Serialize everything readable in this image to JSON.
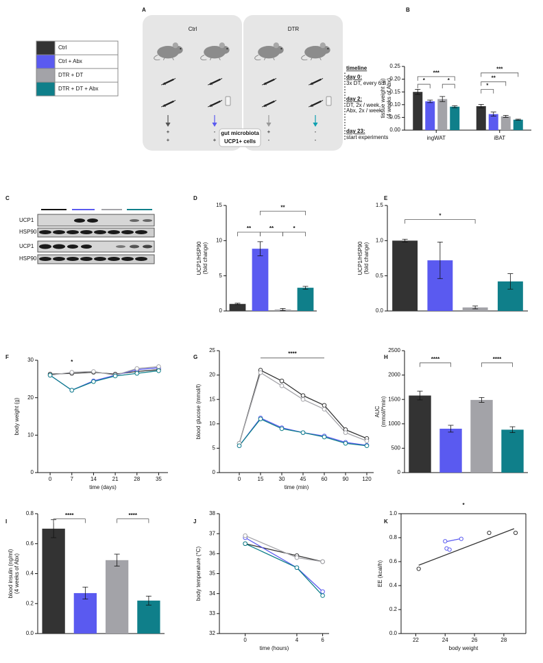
{
  "legend": {
    "entries": [
      {
        "label": "Ctrl",
        "color": "#333333"
      },
      {
        "label": "Ctrl + Abx",
        "color": "#5a5af0"
      },
      {
        "label": "DTR + DT",
        "color": "#a3a3a8"
      },
      {
        "label": "DTR + DT + Abx",
        "color": "#0f7f8a"
      }
    ]
  },
  "panel_a": {
    "letter": "A",
    "groups": [
      "Ctrl",
      "DTR"
    ],
    "signs": [
      [
        "+",
        "+"
      ],
      [
        "-",
        "+"
      ],
      [
        "+",
        "-"
      ],
      [
        "-",
        "-"
      ]
    ],
    "row_labels": [
      "gut microbiota",
      "UCP1+ cells"
    ],
    "timeline": {
      "title": "timeline",
      "steps": [
        {
          "day": "day 0:",
          "text": [
            "3x DT, every 6 h"
          ]
        },
        {
          "day": "day 2:",
          "text": [
            "DT, 2x / week,",
            "Abx, 2x / week"
          ]
        },
        {
          "day": "day 23:",
          "text": [
            "start experiments"
          ]
        }
      ]
    }
  },
  "panel_c": {
    "letter": "C",
    "rows": [
      "UCP1",
      "HSP90",
      "UCP1",
      "HSP90"
    ]
  },
  "chart_data": [
    {
      "type": "bar",
      "panel": "B",
      "categories": [
        "ingWAT",
        "iBAT"
      ],
      "ylabel": [
        "tissue weight (g)",
        "(4 weeks of Abx)"
      ],
      "series": [
        {
          "name": "Ctrl",
          "color": "#333333",
          "values": [
            0.15,
            0.094
          ],
          "errors": [
            0.01,
            0.007
          ]
        },
        {
          "name": "Ctrl + Abx",
          "color": "#5a5af0",
          "values": [
            0.113,
            0.063
          ],
          "errors": [
            0.005,
            0.008
          ]
        },
        {
          "name": "DTR + DT",
          "color": "#a3a3a8",
          "values": [
            0.122,
            0.054
          ],
          "errors": [
            0.01,
            0.004
          ]
        },
        {
          "name": "DTR + DT + Abx",
          "color": "#0f7f8a",
          "values": [
            0.092,
            0.041
          ],
          "errors": [
            0.004,
            0.002
          ]
        }
      ],
      "ylim": [
        0,
        0.25
      ],
      "yticks": [
        {
          "value": 0,
          "label": "0.00"
        },
        {
          "value": 0.05,
          "label": "0.05"
        },
        {
          "value": 0.1,
          "label": "0.10"
        },
        {
          "value": 0.15,
          "label": "0.15"
        },
        {
          "value": 0.2,
          "label": "0.20"
        },
        {
          "value": 0.25,
          "label": "0.25"
        }
      ],
      "annotations": [
        "*",
        "*",
        "***",
        "*",
        "**",
        "***"
      ]
    },
    {
      "type": "bar",
      "panel": "D",
      "values": [
        1.0,
        8.85,
        0.2,
        3.3
      ],
      "errors": [
        0.1,
        1.0,
        0.15,
        0.2
      ],
      "colors": [
        "#333333",
        "#5a5af0",
        "#a3a3a8",
        "#0f7f8a"
      ],
      "ylabel": [
        "UCP1/HSP90",
        "(fold change)"
      ],
      "ylim": [
        0,
        15
      ],
      "yticks": [
        0,
        5,
        10,
        15
      ],
      "annotations": [
        "**",
        "**",
        "*",
        "**"
      ]
    },
    {
      "type": "bar",
      "panel": "E",
      "values": [
        1.0,
        0.72,
        0.05,
        0.42
      ],
      "errors": [
        0.02,
        0.26,
        0.02,
        0.11
      ],
      "colors": [
        "#333333",
        "#5a5af0",
        "#a3a3a8",
        "#0f7f8a"
      ],
      "ylabel": [
        "UCP1/HSP90",
        "(fold change)"
      ],
      "ylim": [
        0,
        1.5
      ],
      "yticks": [
        {
          "value": 0,
          "label": "0.0"
        },
        {
          "value": 0.5,
          "label": "0.5"
        },
        {
          "value": 1,
          "label": "1.0"
        },
        {
          "value": 1.5,
          "label": "1.5"
        }
      ],
      "annotations": [
        "*"
      ]
    },
    {
      "type": "line",
      "panel": "F",
      "x": [
        0,
        7,
        14,
        21,
        28,
        35
      ],
      "xlim": [
        -4,
        38
      ],
      "xticks": [
        0,
        7,
        14,
        21,
        28,
        35
      ],
      "xlabel": "time (days)",
      "ylabel": [
        "body weight (g)"
      ],
      "series": [
        {
          "name": "Ctrl",
          "color": "#333333",
          "values": [
            26.3,
            26.5,
            26.8,
            26.3,
            27.0,
            27.5
          ]
        },
        {
          "name": "Ctrl + Abx",
          "color": "#5a5af0",
          "values": [
            26.0,
            22.0,
            24.5,
            26.0,
            27.5,
            28.0
          ]
        },
        {
          "name": "DTR + DT",
          "color": "#a3a3a8",
          "values": [
            26.0,
            26.8,
            27.0,
            26.0,
            27.8,
            28.3
          ]
        },
        {
          "name": "DTR + DT + Abx",
          "color": "#0f7f8a",
          "values": [
            26.0,
            22.0,
            24.3,
            25.8,
            26.5,
            27.2
          ]
        }
      ],
      "ylim": [
        0,
        30
      ],
      "yticks": [
        0,
        10,
        20,
        30
      ],
      "annotations": [
        "*"
      ]
    },
    {
      "type": "line",
      "panel": "G",
      "categories": [
        "0",
        "15",
        "30",
        "45",
        "60",
        "90",
        "120"
      ],
      "xlabel": "time (min)",
      "ylabel": [
        "blood glucose (mmol/l)"
      ],
      "series": [
        {
          "name": "Ctrl",
          "color": "#333333",
          "values": [
            6.0,
            21.0,
            18.8,
            15.8,
            13.8,
            8.8,
            7.0
          ]
        },
        {
          "name": "Ctrl + Abx",
          "color": "#5a5af0",
          "values": [
            5.5,
            11.2,
            9.2,
            8.2,
            7.5,
            6.2,
            5.6
          ]
        },
        {
          "name": "DTR + DT",
          "color": "#a3a3a8",
          "values": [
            6.0,
            20.5,
            17.8,
            15.0,
            13.0,
            8.2,
            6.5
          ]
        },
        {
          "name": "DTR + DT + Abx",
          "color": "#0f7f8a",
          "values": [
            5.5,
            11.0,
            9.0,
            8.2,
            7.3,
            6.0,
            5.5
          ]
        }
      ],
      "ylim": [
        0,
        25
      ],
      "yticks": [
        0,
        5,
        10,
        15,
        20,
        25
      ],
      "annotations": [
        "****"
      ]
    },
    {
      "type": "bar",
      "panel": "H",
      "values": [
        1580,
        900,
        1490,
        880
      ],
      "errors": [
        90,
        70,
        50,
        60
      ],
      "colors": [
        "#333333",
        "#5a5af0",
        "#a3a3a8",
        "#0f7f8a"
      ],
      "ylabel": [
        "AUC",
        "(mmol/l*min)"
      ],
      "ylim": [
        0,
        2500
      ],
      "yticks": [
        0,
        500,
        1000,
        1500,
        2000,
        2500
      ],
      "annotations": [
        "****",
        "****"
      ]
    },
    {
      "type": "bar",
      "panel": "I",
      "values": [
        0.7,
        0.27,
        0.49,
        0.22
      ],
      "errors": [
        0.06,
        0.04,
        0.04,
        0.03
      ],
      "colors": [
        "#333333",
        "#5a5af0",
        "#a3a3a8",
        "#0f7f8a"
      ],
      "ylabel": [
        "blood insulin (ng/ml)",
        "(4 weeks of  Abx)"
      ],
      "ylim": [
        0,
        0.8
      ],
      "yticks": [
        {
          "value": 0,
          "label": "0.0"
        },
        {
          "value": 0.2,
          "label": "0.2"
        },
        {
          "value": 0.4,
          "label": "0.4"
        },
        {
          "value": 0.6,
          "label": "0.6"
        },
        {
          "value": 0.8,
          "label": "0.8"
        }
      ],
      "annotations": [
        "****",
        "****"
      ]
    },
    {
      "type": "line",
      "panel": "J",
      "x": [
        0,
        4,
        6
      ],
      "xlim": [
        -2,
        6.5
      ],
      "xticks": [
        0,
        4,
        6
      ],
      "xlabel": "time (hours)",
      "ylabel": [
        "body temperature (°C)"
      ],
      "series": [
        {
          "name": "Ctrl",
          "color": "#333333",
          "values": [
            36.5,
            35.9,
            35.6
          ]
        },
        {
          "name": "Ctrl + Abx",
          "color": "#5a5af0",
          "values": [
            36.8,
            35.3,
            34.1
          ]
        },
        {
          "name": "DTR + DT",
          "color": "#a3a3a8",
          "values": [
            36.9,
            35.8,
            35.6
          ]
        },
        {
          "name": "DTR + DT + Abx",
          "color": "#0f7f8a",
          "values": [
            36.5,
            35.3,
            33.9
          ]
        }
      ],
      "ylim": [
        32,
        38
      ],
      "yticks": [
        32,
        33,
        34,
        35,
        36,
        37,
        38
      ]
    },
    {
      "type": "scatter",
      "panel": "K",
      "xlabel": "body weight",
      "ylabel": [
        "EE (kcal/h)"
      ],
      "xlim": [
        21,
        29.5
      ],
      "xticks": [
        22,
        24,
        26,
        28
      ],
      "ylim": [
        0,
        1
      ],
      "yticks": [
        {
          "value": 0,
          "label": "0.0"
        },
        {
          "value": 0.2,
          "label": "0.2"
        },
        {
          "value": 0.4,
          "label": "0.4"
        },
        {
          "value": 0.6,
          "label": "0.6"
        },
        {
          "value": 0.8,
          "label": "0.8"
        },
        {
          "value": 1,
          "label": "1.0"
        }
      ],
      "series": [
        {
          "color": "#333333",
          "x": [
            22.2,
            27.0,
            28.8
          ],
          "values": [
            0.54,
            0.84,
            0.84
          ]
        },
        {
          "color": "#5a5af0",
          "x": [
            24.0,
            24.1,
            24.3,
            25.1
          ],
          "values": [
            0.77,
            0.71,
            0.7,
            0.79
          ]
        }
      ],
      "fits": [
        {
          "color": "#333333",
          "x": [
            22.2,
            28.7
          ],
          "values": [
            0.57,
            0.875
          ]
        },
        {
          "color": "#5a5af0",
          "x": [
            24.0,
            25.0
          ],
          "values": [
            0.765,
            0.79
          ]
        }
      ],
      "annotations": [
        "*"
      ]
    }
  ]
}
